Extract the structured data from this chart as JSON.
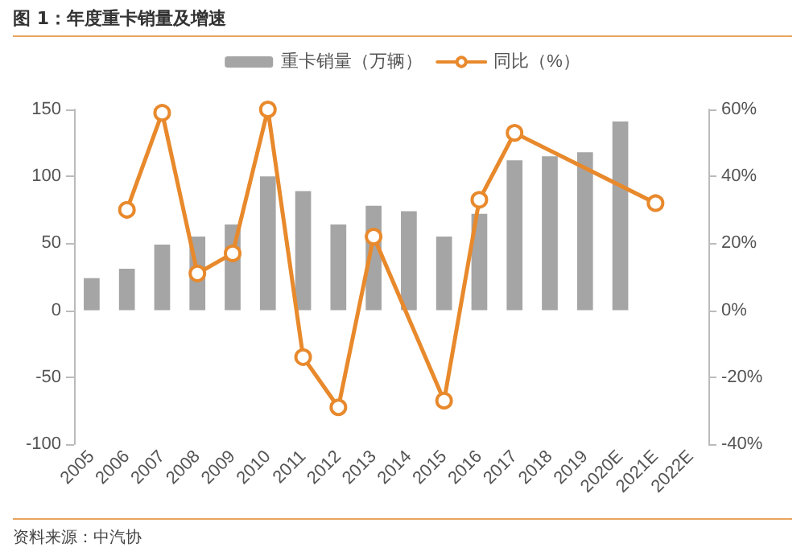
{
  "chart_data": {
    "type": "bar",
    "title": "图 1：年度重卡销量及增速",
    "categories": [
      "2005",
      "2006",
      "2007",
      "2008",
      "2009",
      "2010",
      "2011",
      "2012",
      "2013",
      "2014",
      "2015",
      "2016",
      "2017",
      "2018",
      "2019",
      "2020E",
      "2021E",
      "2022E"
    ],
    "series": [
      {
        "name": "重卡销量（万辆）",
        "color": "#a5a5a5",
        "values": [
          24,
          31,
          49,
          55,
          64,
          100,
          89,
          64,
          78,
          74,
          55,
          72,
          112,
          115,
          118,
          141,
          null,
          null
        ]
      },
      {
        "name": "同比（%）",
        "type": "line",
        "axis": "y2",
        "color": "#e8892c",
        "marker": "circle",
        "values": [
          null,
          30,
          59,
          11,
          17,
          60,
          -14,
          -29,
          22,
          null,
          -27,
          33,
          53,
          null,
          null,
          null,
          32,
          null
        ]
      }
    ],
    "ylim": [
      -100,
      150
    ],
    "yticks": [
      -100,
      -50,
      0,
      50,
      100,
      150
    ],
    "y2lim": [
      -40,
      60
    ],
    "y2ticks": [
      {
        "value": -40,
        "label": "-40%"
      },
      {
        "value": -20,
        "label": "-20%"
      },
      {
        "value": 0,
        "label": "0%"
      },
      {
        "value": 20,
        "label": "20%"
      },
      {
        "value": 40,
        "label": "40%"
      },
      {
        "value": 60,
        "label": "60%"
      }
    ],
    "legend": "top",
    "grid": false,
    "annotations": [
      "资料来源：中汽协"
    ]
  }
}
